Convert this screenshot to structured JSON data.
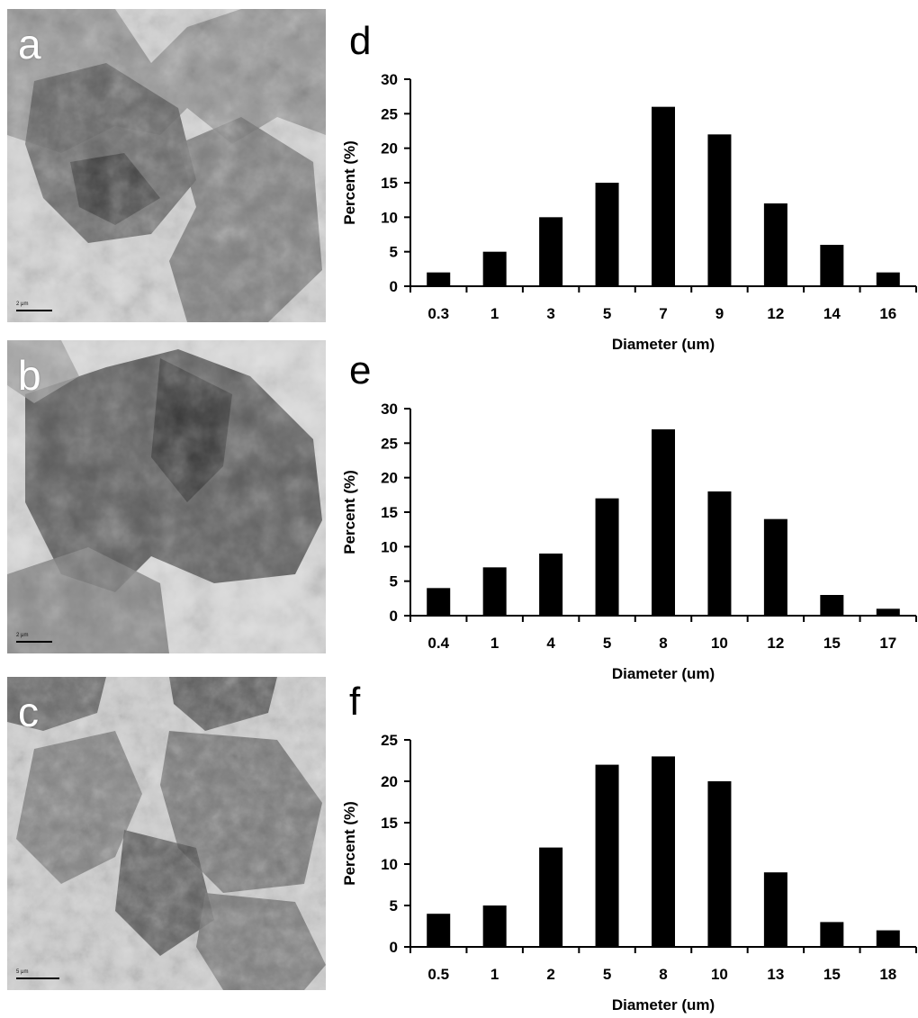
{
  "micrographs": [
    {
      "letter": "a",
      "scale_label": "2 μm"
    },
    {
      "letter": "b",
      "scale_label": "2 μm"
    },
    {
      "letter": "c",
      "scale_label": "5 μm"
    }
  ],
  "chart_data": [
    {
      "type": "bar",
      "panel_label": "d",
      "categories": [
        "0.3",
        "1",
        "3",
        "5",
        "7",
        "9",
        "12",
        "14",
        "16"
      ],
      "values": [
        2,
        5,
        10,
        15,
        26,
        22,
        12,
        6,
        2
      ],
      "xlabel": "Diameter (um)",
      "ylabel": "Percent (%)",
      "ylim": [
        0,
        30
      ],
      "yticks": [
        0,
        5,
        10,
        15,
        20,
        25,
        30
      ],
      "grid": false,
      "bar_color": "#000000"
    },
    {
      "type": "bar",
      "panel_label": "e",
      "categories": [
        "0.4",
        "1",
        "4",
        "5",
        "8",
        "10",
        "12",
        "15",
        "17"
      ],
      "values": [
        4,
        7,
        9,
        17,
        27,
        18,
        14,
        3,
        1
      ],
      "xlabel": "Diameter (um)",
      "ylabel": "Percent (%)",
      "ylim": [
        0,
        30
      ],
      "yticks": [
        0,
        5,
        10,
        15,
        20,
        25,
        30
      ],
      "grid": false,
      "bar_color": "#000000"
    },
    {
      "type": "bar",
      "panel_label": "f",
      "categories": [
        "0.5",
        "1",
        "2",
        "5",
        "8",
        "10",
        "13",
        "15",
        "18"
      ],
      "values": [
        4,
        5,
        12,
        22,
        23,
        20,
        9,
        3,
        2
      ],
      "xlabel": "Diameter (um)",
      "ylabel": "Percent (%)",
      "ylim": [
        0,
        25
      ],
      "yticks": [
        0,
        5,
        10,
        15,
        20,
        25
      ],
      "grid": false,
      "bar_color": "#000000"
    }
  ]
}
